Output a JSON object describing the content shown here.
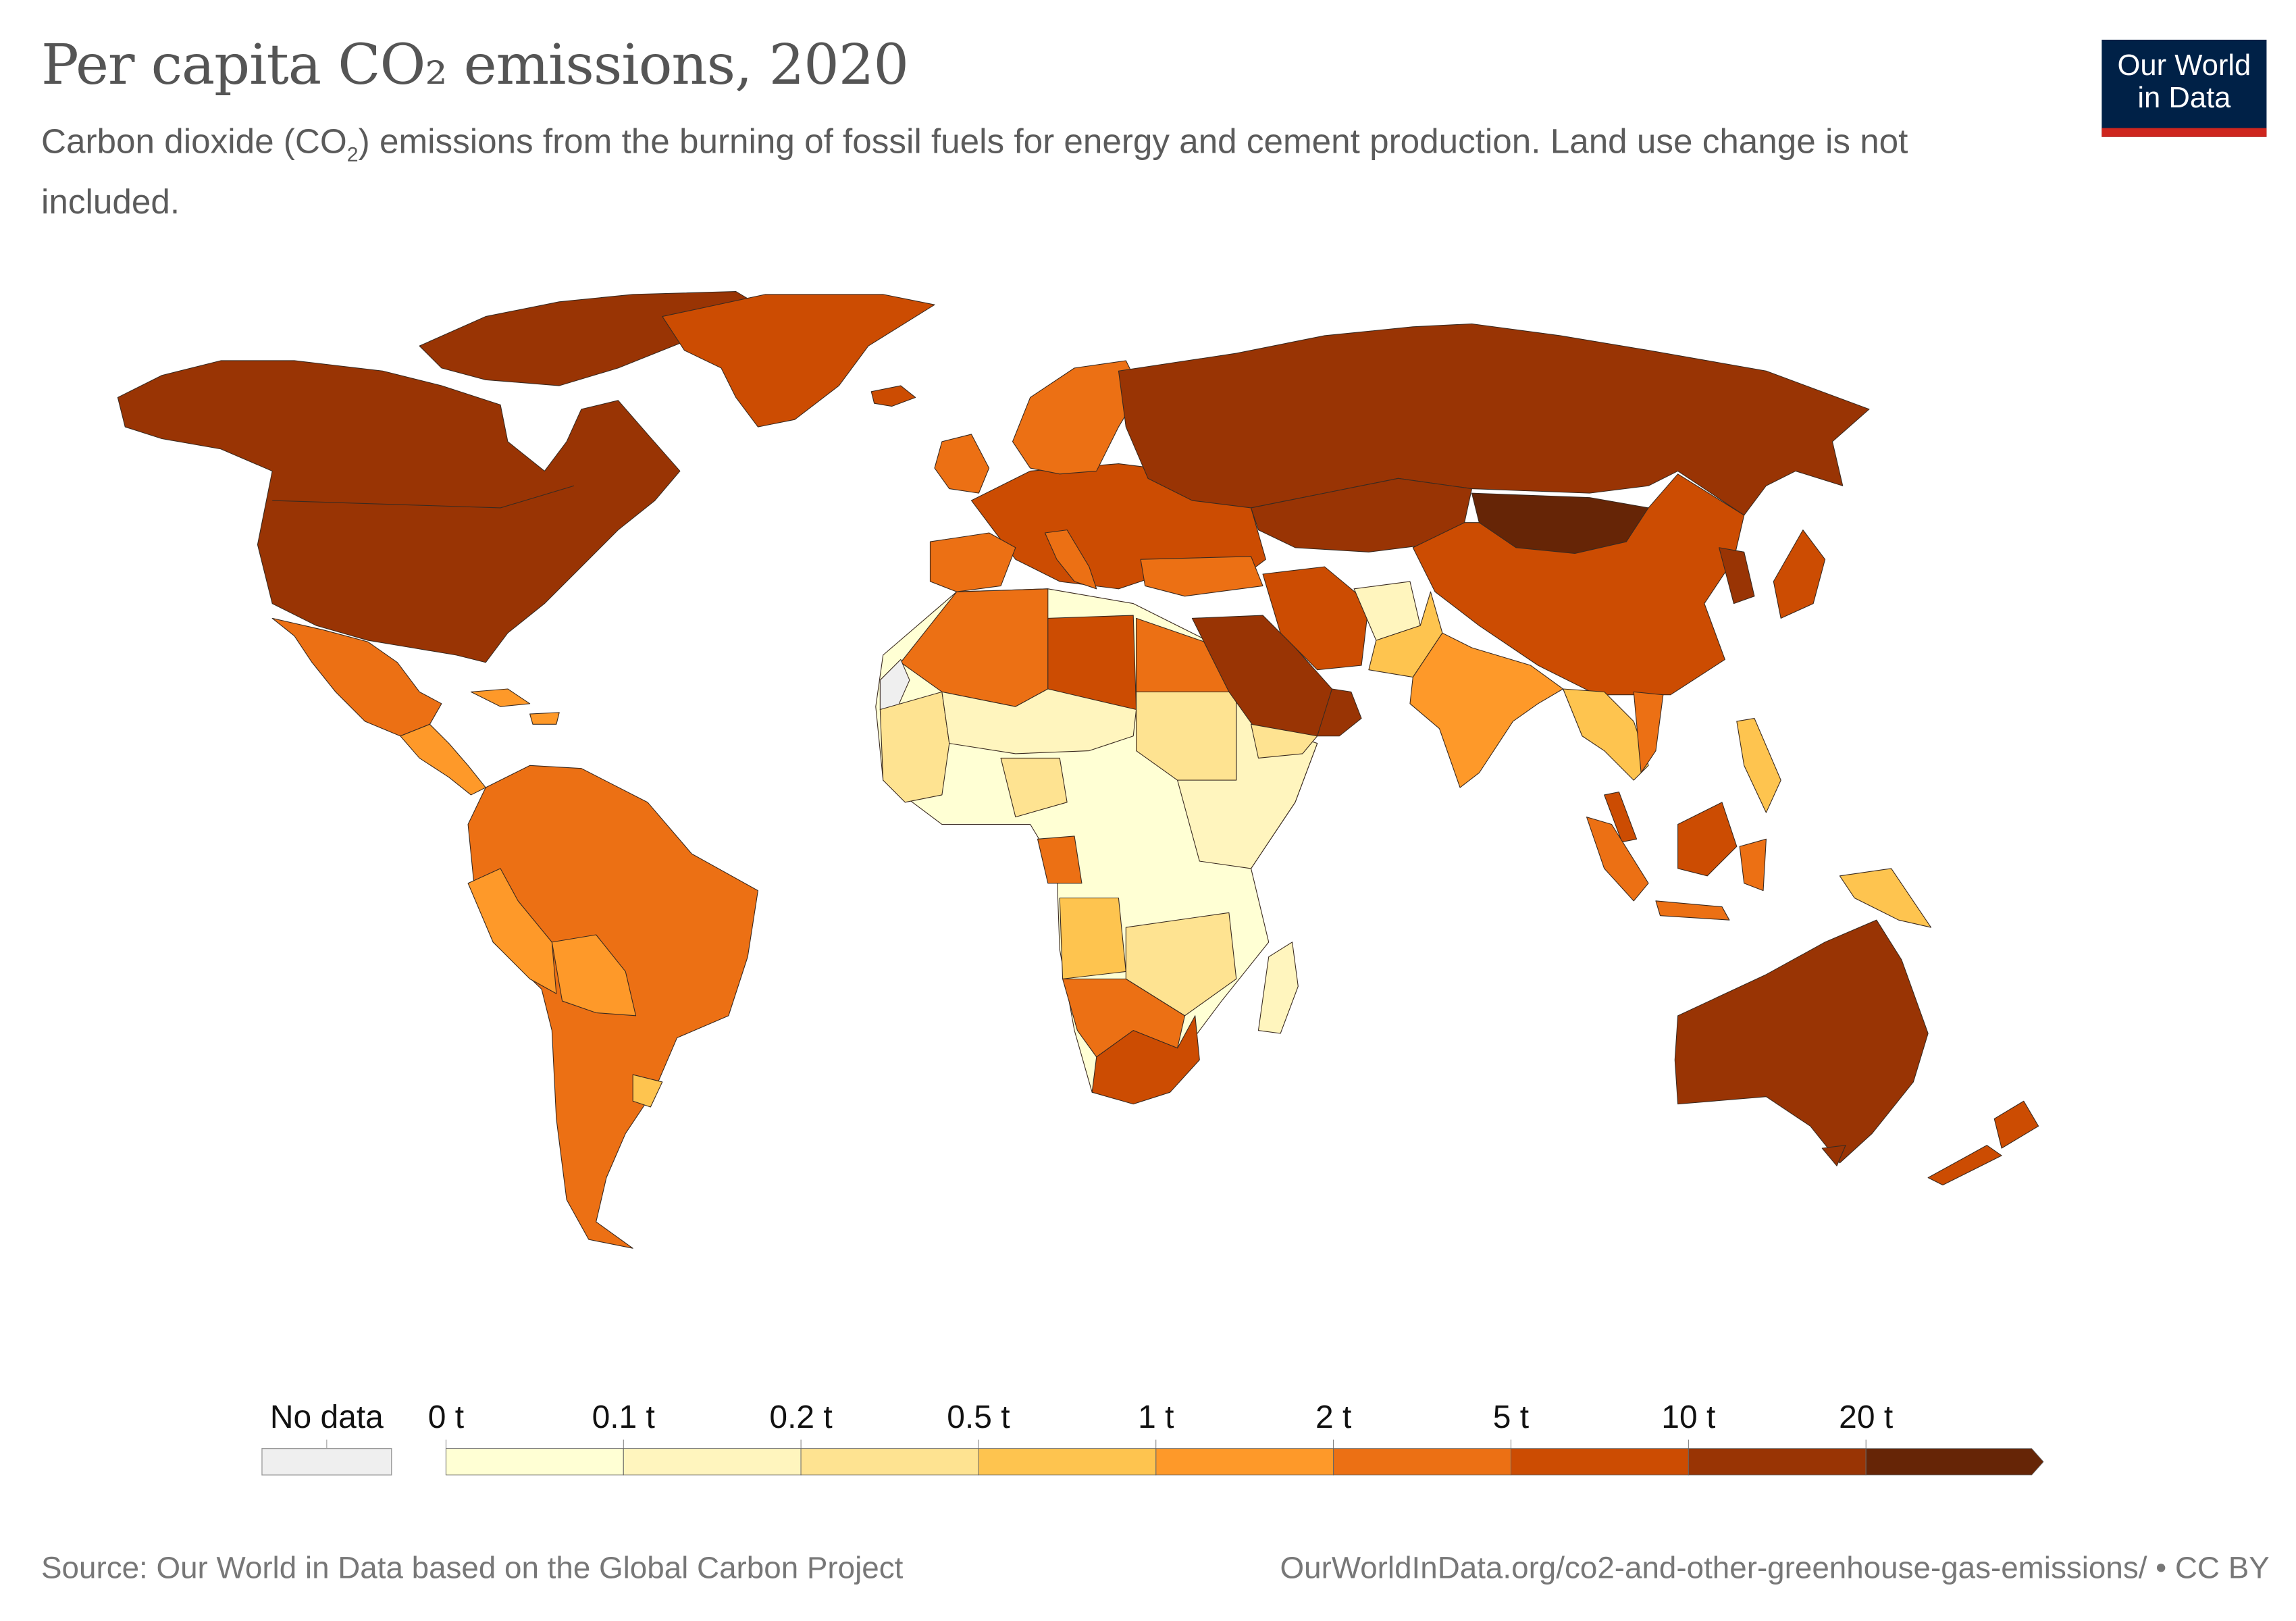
{
  "header": {
    "title": "Per capita CO₂ emissions, 2020",
    "subtitle_pre": "Carbon dioxide (CO",
    "subtitle_sub": "2",
    "subtitle_post": ") emissions from the burning of fossil fuels for energy and cement production. Land use change is not included."
  },
  "logo": {
    "line1": "Our World",
    "line2": "in Data",
    "bg_color": "#002147",
    "accent_color": "#ce261e"
  },
  "legend": {
    "no_data_label": "No data",
    "no_data_color": "#efefef",
    "ticks": [
      "0 t",
      "0.1 t",
      "0.2 t",
      "0.5 t",
      "1 t",
      "2 t",
      "5 t",
      "10 t",
      "20 t"
    ],
    "colors": [
      "#ffffd4",
      "#fff5be",
      "#fee391",
      "#fec44f",
      "#fe9929",
      "#ec7014",
      "#cc4c02",
      "#993404",
      "#662506"
    ]
  },
  "map_bins": {
    "north_america": 7,
    "arctic": 7,
    "greenland": 6,
    "mexico": 5,
    "central_america": 4,
    "caribbean": 4,
    "south_america": 5,
    "peru": 4,
    "bolivia": 4,
    "paraguay": 3,
    "africa_central": 0,
    "north_africa": 5,
    "libya": 6,
    "egypt": 5,
    "sahel": 1,
    "west_africa": 2,
    "east_africa": 1,
    "angola": 3,
    "southern_mid": 2,
    "namibia": 5,
    "south_africa": 6,
    "madagascar": 1,
    "gabon": 5,
    "europe": 6,
    "scandinavia": 5,
    "uk": 5,
    "iberia": 5,
    "italy": 5,
    "iceland": 6,
    "russia": 7,
    "kazakhstan": 7,
    "mongolia": 8,
    "china": 6,
    "turkey": 5,
    "iran": 6,
    "saudi": 7,
    "oman": 7,
    "yemen": 2,
    "afghanistan": 1,
    "pakistan": 3,
    "india": 4,
    "southeast_asia": 3,
    "vietnam": 5,
    "malaysia": 6,
    "indonesia": 5,
    "philippines": 3,
    "japan": 6,
    "korea": 7,
    "png": 3,
    "australia": 7,
    "tasmania": 7,
    "new_zealand": 6,
    "western_sahara": null
  },
  "footer": {
    "source": "Source: Our World in Data based on the Global Carbon Project",
    "url": "OurWorldInData.org/co2-and-other-greenhouse-gas-emissions/ • CC BY"
  }
}
